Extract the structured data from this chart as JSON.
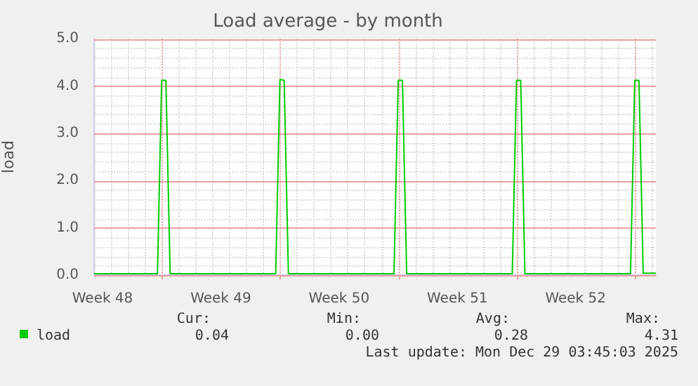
{
  "chart_data": {
    "type": "line",
    "title": "Load average - by month",
    "ylabel": "load",
    "categories": [
      null,
      null,
      "Week 48",
      null,
      null,
      null,
      null,
      null,
      null,
      null,
      null,
      null,
      null,
      null,
      null,
      null,
      null,
      null,
      null,
      null,
      null,
      null,
      null,
      null,
      null,
      null,
      null,
      null,
      null,
      null,
      "Week 49",
      null,
      null,
      null,
      null,
      null,
      null,
      null,
      null,
      null,
      null,
      null,
      null,
      null,
      null,
      null,
      null,
      null,
      null,
      null,
      null,
      null,
      null,
      null,
      null,
      null,
      null,
      null,
      "Week 50",
      null,
      null,
      null,
      null,
      null,
      null,
      null,
      null,
      null,
      null,
      null,
      null,
      null,
      null,
      null,
      null,
      null,
      null,
      null,
      null,
      null,
      null,
      null,
      null,
      null,
      null,
      null,
      "Week 51",
      null,
      null,
      null,
      null,
      null,
      null,
      null,
      null,
      null,
      null,
      null,
      null,
      null,
      null,
      null,
      null,
      null,
      null,
      null,
      null,
      null,
      null,
      null,
      null,
      null,
      null,
      null,
      "Week 52",
      null,
      null,
      null,
      null,
      null,
      null,
      null,
      null,
      null,
      null,
      null,
      null,
      null,
      null,
      null,
      null,
      null,
      null,
      null
    ],
    "series": [
      {
        "name": "load",
        "color": "#00cc00",
        "values": [
          0.03,
          0.03,
          0.03,
          0.03,
          0.03,
          0.03,
          0.03,
          0.03,
          0.03,
          0.03,
          0.03,
          0.03,
          0.03,
          0.03,
          0.03,
          0.03,
          4.12,
          4.12,
          0.03,
          0.03,
          0.03,
          0.03,
          0.03,
          0.03,
          0.03,
          0.03,
          0.03,
          0.03,
          0.03,
          0.03,
          0.03,
          0.03,
          0.03,
          0.03,
          0.03,
          0.03,
          0.03,
          0.03,
          0.03,
          0.03,
          0.03,
          0.03,
          0.03,
          0.03,
          4.14,
          4.12,
          0.03,
          0.03,
          0.03,
          0.03,
          0.03,
          0.03,
          0.03,
          0.03,
          0.03,
          0.03,
          0.03,
          0.03,
          0.03,
          0.03,
          0.03,
          0.03,
          0.03,
          0.03,
          0.03,
          0.03,
          0.03,
          0.03,
          0.03,
          0.03,
          0.03,
          0.03,
          4.12,
          4.12,
          0.03,
          0.03,
          0.03,
          0.03,
          0.03,
          0.03,
          0.03,
          0.03,
          0.03,
          0.03,
          0.03,
          0.03,
          0.03,
          0.03,
          0.03,
          0.03,
          0.03,
          0.03,
          0.03,
          0.03,
          0.03,
          0.03,
          0.03,
          0.03,
          0.03,
          0.03,
          4.12,
          4.12,
          0.03,
          0.03,
          0.03,
          0.03,
          0.03,
          0.03,
          0.03,
          0.03,
          0.03,
          0.03,
          0.03,
          0.03,
          0.03,
          0.03,
          0.03,
          0.03,
          0.03,
          0.03,
          0.03,
          0.03,
          0.03,
          0.03,
          0.03,
          0.03,
          0.03,
          0.03,
          4.12,
          4.12,
          0.04,
          0.04,
          0.04,
          0.04
        ]
      }
    ],
    "ylim": [
      0,
      5
    ],
    "yticks": [
      {
        "value": 0,
        "label": "0.0"
      },
      {
        "value": 1,
        "label": "1.0"
      },
      {
        "value": 2,
        "label": "2.0"
      },
      {
        "value": 3,
        "label": "3.0"
      },
      {
        "value": 4,
        "label": "4.0"
      },
      {
        "value": 5,
        "label": "5.0"
      }
    ],
    "grid": true,
    "legend": "bottom left",
    "marker": "none",
    "line_style": "solid",
    "annotations": [
      "Cur:",
      "Min:",
      "Avg:",
      "Max:",
      "0.04",
      "0.00",
      "0.28",
      "4.31",
      "Last update: Mon Dec 29 03:45:03 2025"
    ]
  }
}
